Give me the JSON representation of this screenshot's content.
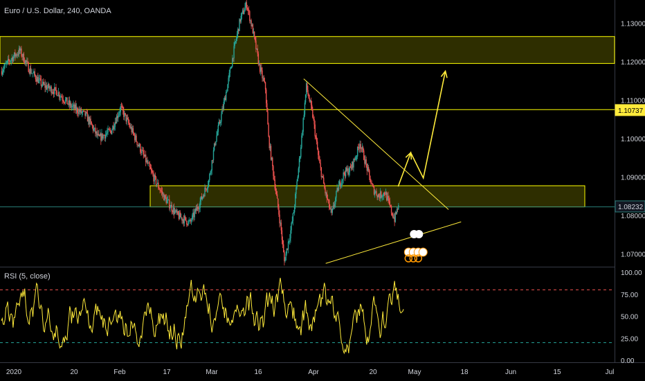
{
  "header": {
    "title": "Euro / U.S. Dollar, 240, OANDA"
  },
  "rsi": {
    "title": "RSI (5, close)",
    "upper_level": 80,
    "lower_level": 20,
    "ylim": [
      0,
      100
    ],
    "y_ticks": [
      "100.00",
      "75.00",
      "50.00",
      "25.00",
      "0.00"
    ]
  },
  "colors": {
    "background": "#000000",
    "up_candle": "#26a69a",
    "down_candle": "#ef5350",
    "zone": "#ffff00",
    "rsi_line": "#ffeb3b",
    "badge_yellow": "#ffeb3b"
  },
  "chart_data": {
    "type": "candlestick",
    "symbol": "Euro / U.S. Dollar",
    "interval": "240",
    "source": "OANDA",
    "ylim": [
      1.067,
      1.136
    ],
    "y_ticks": [
      "1.13000",
      "1.12000",
      "1.11000",
      "1.10000",
      "1.09000",
      "1.08000",
      "1.07000"
    ],
    "x_ticks": [
      "2020",
      "20",
      "Feb",
      "17",
      "Mar",
      "16",
      "Apr",
      "20",
      "May",
      "18",
      "Jun",
      "15",
      "Jul"
    ],
    "price_badges": [
      {
        "value": 1.10737,
        "label": "1.10737",
        "style": "yellow"
      },
      {
        "value": 1.08232,
        "label": "1.08232",
        "style": "dark"
      }
    ],
    "zones": [
      {
        "from": 1.1195,
        "to": 1.1265
      },
      {
        "from": 1.0822,
        "to": 1.0877
      }
    ],
    "horizontal_lines": [
      1.1075,
      1.0822
    ],
    "trend_lines": [
      {
        "from": [
          96,
          1.1155
        ],
        "to": [
          142,
          1.0815
        ]
      },
      {
        "from": [
          103,
          1.0675
        ],
        "to": [
          146,
          1.0783
        ]
      }
    ],
    "projection_arrow": [
      [
        126,
        1.0875
      ],
      [
        130,
        1.0963
      ],
      [
        134,
        1.0897
      ],
      [
        141,
        1.1175
      ]
    ],
    "candles_key_points": [
      [
        0,
        1.1175
      ],
      [
        3,
        1.1205
      ],
      [
        6,
        1.1228
      ],
      [
        9,
        1.118
      ],
      [
        13,
        1.114
      ],
      [
        18,
        1.112
      ],
      [
        22,
        1.1085
      ],
      [
        27,
        1.106
      ],
      [
        31,
        1.1
      ],
      [
        35,
        1.102
      ],
      [
        38,
        1.108
      ],
      [
        41,
        1.103
      ],
      [
        45,
        1.096
      ],
      [
        49,
        1.089
      ],
      [
        52,
        1.0845
      ],
      [
        56,
        1.08
      ],
      [
        60,
        1.078
      ],
      [
        63,
        1.083
      ],
      [
        66,
        1.089
      ],
      [
        68,
        1.099
      ],
      [
        70,
        1.106
      ],
      [
        72,
        1.114
      ],
      [
        74,
        1.123
      ],
      [
        76,
        1.131
      ],
      [
        78,
        1.135
      ],
      [
        80,
        1.128
      ],
      [
        82,
        1.119
      ],
      [
        84,
        1.113
      ],
      [
        85,
        1.1
      ],
      [
        87,
        1.088
      ],
      [
        89,
        1.076
      ],
      [
        90,
        1.068
      ],
      [
        92,
        1.076
      ],
      [
        93,
        1.081
      ],
      [
        95,
        1.096
      ],
      [
        97,
        1.1135
      ],
      [
        99,
        1.106
      ],
      [
        101,
        1.094
      ],
      [
        103,
        1.086
      ],
      [
        105,
        1.08
      ],
      [
        107,
        1.087
      ],
      [
        109,
        1.091
      ],
      [
        111,
        1.092
      ],
      [
        113,
        1.096
      ],
      [
        114,
        1.099
      ],
      [
        116,
        1.093
      ],
      [
        118,
        1.087
      ],
      [
        120,
        1.085
      ],
      [
        122,
        1.086
      ],
      [
        124,
        1.081
      ],
      [
        125,
        1.079
      ],
      [
        126,
        1.082
      ]
    ]
  }
}
